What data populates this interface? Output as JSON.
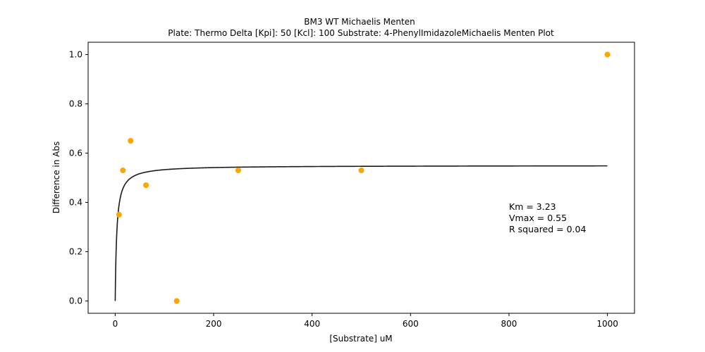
{
  "chart_data": {
    "type": "scatter",
    "title": "BM3 WT Michaelis Menten",
    "subtitle": "Plate: Thermo Delta  [Kpi]: 50  [Kcl]: 100  Substrate: 4-PhenylImidazoleMichaelis Menten Plot",
    "xlabel": "[Substrate] uM",
    "ylabel": "Difference in Abs",
    "xlim": [
      -55,
      1055
    ],
    "ylim": [
      -0.05,
      1.05
    ],
    "xticks": [
      0,
      200,
      400,
      600,
      800,
      1000
    ],
    "xtick_labels": [
      "0",
      "200",
      "400",
      "600",
      "800",
      "1000"
    ],
    "yticks": [
      0.0,
      0.2,
      0.4,
      0.6,
      0.8,
      1.0
    ],
    "ytick_labels": [
      "0.0",
      "0.2",
      "0.4",
      "0.6",
      "0.8",
      "1.0"
    ],
    "grid": false,
    "point_color": "#ffa500",
    "fit_color": "#1a1a1a",
    "series": [
      {
        "values_x": [
          7.8,
          15.6,
          31.25,
          62.5,
          125,
          250,
          500,
          1000
        ],
        "values_y": [
          0.35,
          0.53,
          0.65,
          0.47,
          0.0,
          0.53,
          0.53,
          1.0
        ]
      }
    ],
    "fit": {
      "model": "michaelis-menten",
      "Km": 3.23,
      "Vmax": 0.55,
      "x_range": [
        0,
        1000
      ]
    },
    "annotations": [
      "Km = 3.23",
      "Vmax = 0.55",
      "R squared = 0.04"
    ]
  }
}
